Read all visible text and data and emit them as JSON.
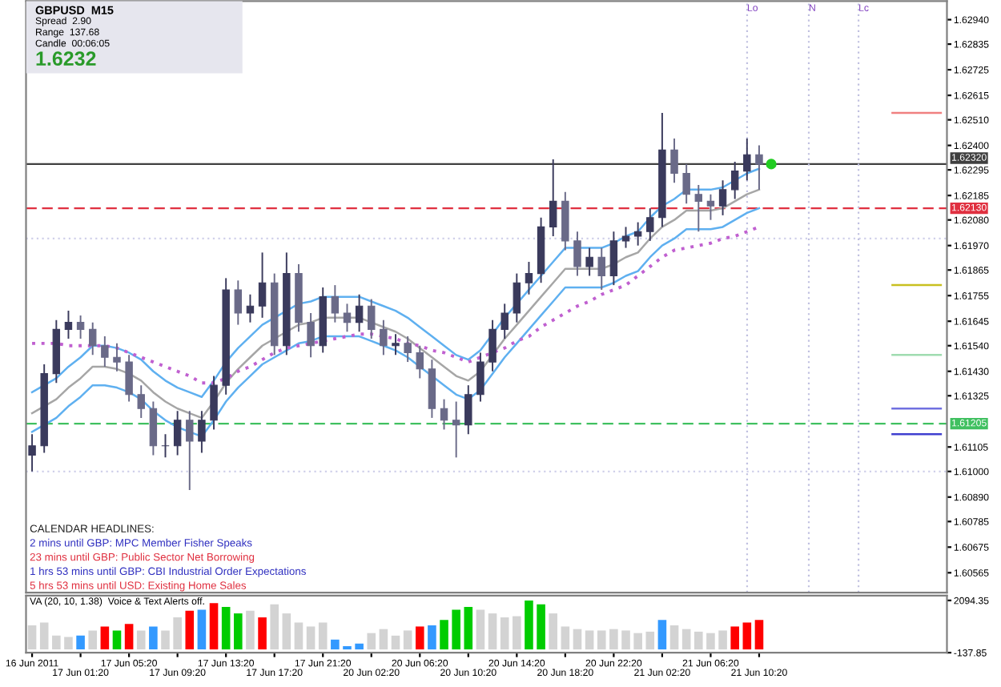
{
  "chart_data": [
    {
      "type": "candlestick",
      "categories": [
        null,
        null,
        null,
        null,
        null,
        null,
        null,
        null,
        null,
        null,
        null,
        null,
        null,
        null,
        null,
        null,
        null,
        null,
        null,
        null,
        null,
        null,
        null,
        null,
        null,
        null,
        null,
        null,
        null,
        null,
        null,
        null,
        null,
        null,
        null,
        null,
        null,
        null,
        null,
        null,
        null,
        null,
        null,
        null,
        null,
        null,
        null,
        null,
        null,
        null,
        null,
        null,
        null,
        null,
        null,
        null,
        null,
        null,
        null,
        null,
        null,
        null,
        null,
        null,
        null,
        null,
        null,
        null,
        null,
        null,
        null,
        null,
        null,
        null,
        null,
        null
      ],
      "ohlc": [
        [
          1.6107,
          1.6116,
          1.61,
          1.6111
        ],
        [
          1.6111,
          1.6146,
          1.6108,
          1.6142
        ],
        [
          1.6142,
          1.6165,
          1.6138,
          1.6161
        ],
        [
          1.6161,
          1.6169,
          1.6157,
          1.6164
        ],
        [
          1.6164,
          1.6167,
          1.6157,
          1.6161
        ],
        [
          1.6161,
          1.6164,
          1.615,
          1.6154
        ],
        [
          1.6154,
          1.6158,
          1.6145,
          1.6149
        ],
        [
          1.6149,
          1.6155,
          1.6143,
          1.6147
        ],
        [
          1.6147,
          1.615,
          1.613,
          1.6133
        ],
        [
          1.6133,
          1.6137,
          1.6123,
          1.6127
        ],
        [
          1.6127,
          1.613,
          1.6107,
          1.6111
        ],
        [
          1.6111,
          1.6116,
          1.6106,
          1.6111
        ],
        [
          1.6111,
          1.6126,
          1.6107,
          1.6122
        ],
        [
          1.6122,
          1.6126,
          1.6092,
          1.6113
        ],
        [
          1.6113,
          1.6126,
          1.6108,
          1.6122
        ],
        [
          1.6122,
          1.6141,
          1.6118,
          1.6137
        ],
        [
          1.6137,
          1.6183,
          1.6133,
          1.6178
        ],
        [
          1.6178,
          1.6182,
          1.6163,
          1.6168
        ],
        [
          1.6168,
          1.6176,
          1.6164,
          1.6171
        ],
        [
          1.6171,
          1.6194,
          1.6166,
          1.6181
        ],
        [
          1.6181,
          1.6185,
          1.615,
          1.6154
        ],
        [
          1.6154,
          1.6194,
          1.615,
          1.6185
        ],
        [
          1.6185,
          1.6189,
          1.616,
          1.6164
        ],
        [
          1.6164,
          1.6168,
          1.6149,
          1.6154
        ],
        [
          1.6154,
          1.6179,
          1.6151,
          1.6175
        ],
        [
          1.6175,
          1.618,
          1.6164,
          1.6168
        ],
        [
          1.6168,
          1.6172,
          1.616,
          1.6164
        ],
        [
          1.6164,
          1.6176,
          1.616,
          1.6171
        ],
        [
          1.6171,
          1.6174,
          1.6157,
          1.6161
        ],
        [
          1.6161,
          1.6165,
          1.615,
          1.6154
        ],
        [
          1.6154,
          1.6159,
          1.615,
          1.6155
        ],
        [
          1.6155,
          1.6158,
          1.6147,
          1.6151
        ],
        [
          1.6151,
          1.6154,
          1.614,
          1.6144
        ],
        [
          1.6144,
          1.6148,
          1.6123,
          1.6127
        ],
        [
          1.6127,
          1.6131,
          1.6118,
          1.6122
        ],
        [
          1.6122,
          1.613,
          1.6106,
          1.612
        ],
        [
          1.612,
          1.6137,
          1.6116,
          1.6133
        ],
        [
          1.6133,
          1.6151,
          1.613,
          1.6147
        ],
        [
          1.6147,
          1.6165,
          1.6143,
          1.6161
        ],
        [
          1.6161,
          1.6172,
          1.6157,
          1.6168
        ],
        [
          1.6168,
          1.6185,
          1.6164,
          1.6181
        ],
        [
          1.6181,
          1.619,
          1.6176,
          1.6185
        ],
        [
          1.6185,
          1.6209,
          1.6181,
          1.6205
        ],
        [
          1.6205,
          1.6234,
          1.6201,
          1.6216
        ],
        [
          1.6216,
          1.622,
          1.6195,
          1.6199
        ],
        [
          1.6199,
          1.6203,
          1.6184,
          1.6188
        ],
        [
          1.6188,
          1.6196,
          1.6184,
          1.6192
        ],
        [
          1.6192,
          1.6196,
          1.6178,
          1.6184
        ],
        [
          1.6184,
          1.6203,
          1.618,
          1.6199
        ],
        [
          1.6199,
          1.6205,
          1.6196,
          1.6201
        ],
        [
          1.6201,
          1.6207,
          1.6197,
          1.6203
        ],
        [
          1.6203,
          1.6213,
          1.6199,
          1.6209
        ],
        [
          1.6209,
          1.6254,
          1.6205,
          1.6238
        ],
        [
          1.6238,
          1.6243,
          1.6224,
          1.6228
        ],
        [
          1.6228,
          1.6232,
          1.6215,
          1.6219
        ],
        [
          1.6219,
          1.6223,
          1.6203,
          1.6216
        ],
        [
          1.6216,
          1.6219,
          1.6208,
          1.6214
        ],
        [
          1.6214,
          1.6225,
          1.621,
          1.6221
        ],
        [
          1.6221,
          1.6233,
          1.6217,
          1.6229
        ],
        [
          1.6229,
          1.6243,
          1.6225,
          1.6236
        ],
        [
          1.6236,
          1.624,
          1.6221,
          1.6232
        ],
        null,
        null,
        null,
        null,
        null,
        null,
        null,
        null,
        null,
        null,
        null,
        null,
        null,
        null,
        null
      ],
      "series": [
        {
          "type": "line",
          "color": "#a6a6a6",
          "values": [
            1.6125,
            1.6128,
            1.6131,
            1.6136,
            1.614,
            1.6145,
            1.6145,
            1.6144,
            1.6142,
            1.6139,
            1.6134,
            1.613,
            1.6127,
            1.6125,
            1.6123,
            1.613,
            1.6138,
            1.6144,
            1.6149,
            1.6154,
            1.6157,
            1.616,
            1.6163,
            1.6164,
            1.6166,
            1.6166,
            1.6166,
            1.6166,
            1.6164,
            1.6162,
            1.616,
            1.6157,
            1.6153,
            1.6149,
            1.6145,
            1.6141,
            1.6139,
            1.6143,
            1.615,
            1.6157,
            1.6163,
            1.6169,
            1.6175,
            1.6181,
            1.6187,
            1.6187,
            1.6187,
            1.6187,
            1.6189,
            1.6192,
            1.6194,
            1.62,
            1.6205,
            1.6208,
            1.6212,
            1.6212,
            1.6212,
            1.6213,
            1.6216,
            1.6219,
            1.6221,
            null,
            null,
            null,
            null,
            null,
            null,
            null,
            null,
            null,
            null,
            null,
            null,
            null,
            null,
            null
          ]
        },
        {
          "type": "line",
          "color": "#5fb0f0",
          "values": [
            1.6134,
            1.6137,
            1.614,
            1.6145,
            1.6149,
            1.6154,
            1.6154,
            1.6153,
            1.6151,
            1.6148,
            1.6143,
            1.6139,
            1.6136,
            1.6134,
            1.6132,
            1.6139,
            1.6147,
            1.6153,
            1.6158,
            1.6163,
            1.6166,
            1.6169,
            1.6172,
            1.6173,
            1.6175,
            1.6175,
            1.6175,
            1.6175,
            1.6173,
            1.6171,
            1.6169,
            1.6166,
            1.6162,
            1.6158,
            1.6154,
            1.615,
            1.6148,
            1.6152,
            1.6159,
            1.6166,
            1.6172,
            1.6178,
            1.6184,
            1.619,
            1.6196,
            1.6196,
            1.6196,
            1.6196,
            1.6198,
            1.6201,
            1.6203,
            1.6209,
            1.6214,
            1.6217,
            1.6221,
            1.6221,
            1.6221,
            1.6222,
            1.6225,
            1.6228,
            1.623,
            null,
            null,
            null,
            null,
            null,
            null,
            null,
            null,
            null,
            null,
            null,
            null,
            null,
            null,
            null
          ]
        },
        {
          "type": "line",
          "color": "#5fb0f0",
          "values": [
            1.6117,
            1.612,
            1.6123,
            1.6128,
            1.6132,
            1.6137,
            1.6137,
            1.6136,
            1.6134,
            1.6131,
            1.6126,
            1.6122,
            1.6119,
            1.6117,
            1.6115,
            1.6122,
            1.613,
            1.6136,
            1.6141,
            1.6146,
            1.6149,
            1.6152,
            1.6155,
            1.6156,
            1.6158,
            1.6158,
            1.6158,
            1.6158,
            1.6156,
            1.6154,
            1.6152,
            1.6149,
            1.6145,
            1.6141,
            1.6137,
            1.6133,
            1.6131,
            1.6135,
            1.6142,
            1.6149,
            1.6155,
            1.6161,
            1.6167,
            1.6173,
            1.6179,
            1.6179,
            1.6179,
            1.6179,
            1.6181,
            1.6184,
            1.6186,
            1.6192,
            1.6197,
            1.62,
            1.6204,
            1.6204,
            1.6204,
            1.6205,
            1.6208,
            1.6211,
            1.6213,
            null,
            null,
            null,
            null,
            null,
            null,
            null,
            null,
            null,
            null,
            null,
            null,
            null,
            null,
            null
          ]
        },
        {
          "type": "line",
          "color": "#c060d0",
          "line_style": "dotted",
          "values": [
            1.6155,
            1.6155,
            1.6155,
            1.6154,
            1.6154,
            1.6154,
            1.6154,
            1.6153,
            1.6151,
            1.6149,
            1.6147,
            1.6145,
            1.6143,
            1.6141,
            1.6138,
            1.6138,
            1.614,
            1.6143,
            1.6145,
            1.6148,
            1.6151,
            1.6153,
            1.6154,
            1.6155,
            1.6156,
            1.6157,
            1.6158,
            1.6159,
            1.6159,
            1.6158,
            1.6157,
            1.6155,
            1.6154,
            1.6152,
            1.6151,
            1.6149,
            1.6147,
            1.6149,
            1.6151,
            1.6153,
            1.6156,
            1.6158,
            1.6162,
            1.6165,
            1.6168,
            1.6171,
            1.6173,
            1.6176,
            1.6178,
            1.618,
            1.6184,
            1.6188,
            1.6192,
            1.6195,
            1.6196,
            1.6197,
            1.6198,
            1.62,
            1.6201,
            1.6203,
            1.6205,
            null,
            null,
            null,
            null,
            null,
            null,
            null,
            null,
            null,
            null,
            null,
            null,
            null,
            null,
            null
          ]
        },
        {
          "type": "scatter",
          "color": "#22cc22",
          "marker": "circle",
          "values": [
            null,
            null,
            null,
            null,
            null,
            null,
            null,
            null,
            null,
            null,
            null,
            null,
            null,
            null,
            null,
            null,
            null,
            null,
            null,
            null,
            null,
            null,
            null,
            null,
            null,
            null,
            null,
            null,
            null,
            null,
            null,
            null,
            null,
            null,
            null,
            null,
            null,
            null,
            null,
            null,
            null,
            null,
            null,
            null,
            null,
            null,
            null,
            null,
            null,
            null,
            null,
            null,
            null,
            null,
            null,
            null,
            null,
            null,
            null,
            null,
            null,
            1.6232,
            null,
            null,
            null,
            null,
            null,
            null,
            null,
            null,
            null,
            null,
            null,
            null,
            null,
            null
          ]
        },
        {
          "type": "line",
          "color": "#f08080",
          "values": [
            null,
            null,
            null,
            null,
            null,
            null,
            null,
            null,
            null,
            null,
            null,
            null,
            null,
            null,
            null,
            null,
            null,
            null,
            null,
            null,
            null,
            null,
            null,
            null,
            null,
            null,
            null,
            null,
            null,
            null,
            null,
            null,
            null,
            null,
            null,
            null,
            null,
            null,
            null,
            null,
            null,
            null,
            null,
            null,
            null,
            null,
            null,
            null,
            null,
            null,
            null,
            null,
            null,
            null,
            null,
            null,
            null,
            null,
            null,
            null,
            null,
            null,
            null,
            null,
            null,
            null,
            null,
            null,
            null,
            null,
            null,
            1.6254,
            1.6254,
            1.6254,
            1.6254,
            1.6254
          ]
        },
        {
          "type": "line",
          "color": "#c8c020",
          "values": [
            null,
            null,
            null,
            null,
            null,
            null,
            null,
            null,
            null,
            null,
            null,
            null,
            null,
            null,
            null,
            null,
            null,
            null,
            null,
            null,
            null,
            null,
            null,
            null,
            null,
            null,
            null,
            null,
            null,
            null,
            null,
            null,
            null,
            null,
            null,
            null,
            null,
            null,
            null,
            null,
            null,
            null,
            null,
            null,
            null,
            null,
            null,
            null,
            null,
            null,
            null,
            null,
            null,
            null,
            null,
            null,
            null,
            null,
            null,
            null,
            null,
            null,
            null,
            null,
            null,
            null,
            null,
            null,
            null,
            null,
            null,
            1.618,
            1.618,
            1.618,
            1.618,
            1.618
          ]
        },
        {
          "type": "line",
          "color": "#a0dcb0",
          "values": [
            null,
            null,
            null,
            null,
            null,
            null,
            null,
            null,
            null,
            null,
            null,
            null,
            null,
            null,
            null,
            null,
            null,
            null,
            null,
            null,
            null,
            null,
            null,
            null,
            null,
            null,
            null,
            null,
            null,
            null,
            null,
            null,
            null,
            null,
            null,
            null,
            null,
            null,
            null,
            null,
            null,
            null,
            null,
            null,
            null,
            null,
            null,
            null,
            null,
            null,
            null,
            null,
            null,
            null,
            null,
            null,
            null,
            null,
            null,
            null,
            null,
            null,
            null,
            null,
            null,
            null,
            null,
            null,
            null,
            null,
            null,
            1.615,
            1.615,
            1.615,
            1.615,
            1.615
          ]
        },
        {
          "type": "line",
          "color": "#7070e0",
          "values": [
            null,
            null,
            null,
            null,
            null,
            null,
            null,
            null,
            null,
            null,
            null,
            null,
            null,
            null,
            null,
            null,
            null,
            null,
            null,
            null,
            null,
            null,
            null,
            null,
            null,
            null,
            null,
            null,
            null,
            null,
            null,
            null,
            null,
            null,
            null,
            null,
            null,
            null,
            null,
            null,
            null,
            null,
            null,
            null,
            null,
            null,
            null,
            null,
            null,
            null,
            null,
            null,
            null,
            null,
            null,
            null,
            null,
            null,
            null,
            null,
            null,
            null,
            null,
            null,
            null,
            null,
            null,
            null,
            null,
            null,
            null,
            1.6127,
            1.6127,
            1.6127,
            1.6127,
            1.6127
          ]
        },
        {
          "type": "line",
          "color": "#4040d0",
          "values": [
            null,
            null,
            null,
            null,
            null,
            null,
            null,
            null,
            null,
            null,
            null,
            null,
            null,
            null,
            null,
            null,
            null,
            null,
            null,
            null,
            null,
            null,
            null,
            null,
            null,
            null,
            null,
            null,
            null,
            null,
            null,
            null,
            null,
            null,
            null,
            null,
            null,
            null,
            null,
            null,
            null,
            null,
            null,
            null,
            null,
            null,
            null,
            null,
            null,
            null,
            null,
            null,
            null,
            null,
            null,
            null,
            null,
            null,
            null,
            null,
            null,
            null,
            null,
            null,
            null,
            null,
            null,
            null,
            null,
            null,
            null,
            1.6116,
            1.6116,
            1.6116,
            1.6116,
            1.6116
          ]
        }
      ],
      "ref_lines": [
        {
          "axis": "y",
          "value": 1.6232,
          "label": "1.62320",
          "color": "#404040",
          "line_style": "solid"
        },
        {
          "axis": "y",
          "value": 1.6213,
          "label": "1.62130",
          "color": "#e03040",
          "line_style": "dashed"
        },
        {
          "axis": "y",
          "value": 1.62,
          "label": null,
          "color": "#d0d0ea",
          "line_style": "dotted"
        },
        {
          "axis": "y",
          "value": 1.61205,
          "label": "1.61205",
          "color": "#40c060",
          "line_style": "dashed"
        },
        {
          "axis": "y",
          "value": 1.61,
          "label": null,
          "color": "#d0d0ea",
          "line_style": "dotted"
        }
      ],
      "annotations": [
        "GBPUSD  M15",
        "Spread  2.90",
        "Range  137.68",
        "Candle  00:06:05",
        "1.6232",
        "CALENDAR HEADLINES:",
        "2 mins until GBP: MPC Member Fisher Speaks",
        "23 mins until GBP: Public Sector Net Borrowing",
        "1 hrs 53 mins until GBP: CBI Industrial Order Expectations",
        "5 hrs 53 mins until USD: Existing Home Sales",
        "Lo",
        "N",
        "Lc"
      ],
      "ylim": [
        1.6048,
        1.6302
      ],
      "yticks": [
        {
          "value": 1.6294,
          "label": "1.62940"
        },
        {
          "value": 1.62835,
          "label": "1.62835"
        },
        {
          "value": 1.62725,
          "label": "1.62725"
        },
        {
          "value": 1.62615,
          "label": "1.62615"
        },
        {
          "value": 1.6251,
          "label": "1.62510"
        },
        {
          "value": 1.624,
          "label": "1.62400"
        },
        {
          "value": 1.62295,
          "label": "1.62295"
        },
        {
          "value": 1.62185,
          "label": "1.62185"
        },
        {
          "value": 1.6208,
          "label": "1.62080"
        },
        {
          "value": 1.6197,
          "label": "1.61970"
        },
        {
          "value": 1.61865,
          "label": "1.61865"
        },
        {
          "value": 1.61755,
          "label": "1.61755"
        },
        {
          "value": 1.61645,
          "label": "1.61645"
        },
        {
          "value": 1.6154,
          "label": "1.61540"
        },
        {
          "value": 1.6143,
          "label": "1.61430"
        },
        {
          "value": 1.61325,
          "label": "1.61325"
        },
        {
          "value": 1.61105,
          "label": "1.61105"
        },
        {
          "value": 1.61,
          "label": "1.61000"
        },
        {
          "value": 1.6089,
          "label": "1.60890"
        },
        {
          "value": 1.60785,
          "label": "1.60785"
        },
        {
          "value": 1.60675,
          "label": "1.60675"
        },
        {
          "value": 1.60565,
          "label": "1.60565"
        }
      ],
      "tick_labels": "y"
    },
    {
      "type": "bar",
      "categories": [
        "16 Jun 2011",
        null,
        null,
        null,
        "17 Jun 01:20",
        null,
        null,
        null,
        "17 Jun 05:20",
        null,
        null,
        null,
        "17 Jun 09:20",
        null,
        null,
        null,
        "17 Jun 13:20",
        null,
        null,
        null,
        "17 Jun 17:20",
        null,
        null,
        null,
        "17 Jun 21:20",
        null,
        null,
        null,
        "20 Jun 02:20",
        null,
        null,
        null,
        "20 Jun 06:20",
        null,
        null,
        null,
        "20 Jun 10:20",
        null,
        null,
        null,
        "20 Jun 14:20",
        null,
        null,
        null,
        "20 Jun 18:20",
        null,
        null,
        null,
        "20 Jun 22:20",
        null,
        null,
        null,
        "21 Jun 02:20",
        null,
        null,
        null,
        "21 Jun 06:20",
        null,
        null,
        null,
        "21 Jun 10:20",
        null,
        null,
        null,
        null,
        null,
        null,
        null,
        null,
        null,
        null,
        null,
        null,
        null,
        null,
        null
      ],
      "values": [
        1030,
        1150,
        590,
        530,
        590,
        810,
        980,
        810,
        1090,
        810,
        980,
        810,
        1370,
        1650,
        1700,
        1980,
        1820,
        1540,
        1650,
        1370,
        1930,
        1540,
        1150,
        980,
        1150,
        420,
        140,
        250,
        700,
        870,
        590,
        810,
        980,
        1030,
        1260,
        1700,
        1820,
        1700,
        1540,
        1370,
        1420,
        2090,
        1930,
        1540,
        980,
        870,
        810,
        810,
        870,
        810,
        700,
        760,
        1260,
        1030,
        870,
        760,
        700,
        810,
        980,
        1150,
        1260,
        null,
        null,
        null,
        null,
        null,
        null,
        null,
        null,
        null,
        null,
        null,
        null,
        null,
        null,
        null
      ],
      "colors": [
        "#d3d3d3",
        "#d3d3d3",
        "#d3d3d3",
        "#d3d3d3",
        "#3399ff",
        "#d3d3d3",
        "#ff0000",
        "#00cc00",
        "#ff0000",
        "#d3d3d3",
        "#3399ff",
        "#d3d3d3",
        "#d3d3d3",
        "#ff0000",
        "#3399ff",
        "#ff0000",
        "#00cc00",
        "#00cc00",
        "#d3d3d3",
        "#ff0000",
        "#d3d3d3",
        "#d3d3d3",
        "#d3d3d3",
        "#d3d3d3",
        "#d3d3d3",
        "#3399ff",
        "#3399ff",
        "#3399ff",
        "#d3d3d3",
        "#d3d3d3",
        "#d3d3d3",
        "#d3d3d3",
        "#ff0000",
        "#3399ff",
        "#00cc00",
        "#00cc00",
        "#00cc00",
        "#d3d3d3",
        "#d3d3d3",
        "#d3d3d3",
        "#d3d3d3",
        "#00cc00",
        "#00cc00",
        "#d3d3d3",
        "#d3d3d3",
        "#d3d3d3",
        "#d3d3d3",
        "#d3d3d3",
        "#d3d3d3",
        "#d3d3d3",
        "#d3d3d3",
        "#d3d3d3",
        "#3399ff",
        "#d3d3d3",
        "#d3d3d3",
        "#d3d3d3",
        "#d3d3d3",
        "#d3d3d3",
        "#ff0000",
        "#ff0000",
        "#ff0000",
        "#d3d3d3",
        "#d3d3d3",
        "#d3d3d3",
        "#d3d3d3",
        "#d3d3d3",
        "#d3d3d3",
        "#d3d3d3",
        "#d3d3d3",
        "#d3d3d3",
        "#d3d3d3",
        "#d3d3d3",
        "#d3d3d3",
        "#d3d3d3",
        "#d3d3d3",
        "#d3d3d3"
      ],
      "annotations": [
        "VA (20, 10, 1.38)  Voice & Text Alerts off."
      ],
      "ylim": [
        -137.85,
        2300
      ],
      "yticks": [
        2094.35,
        -137.85
      ]
    }
  ]
}
